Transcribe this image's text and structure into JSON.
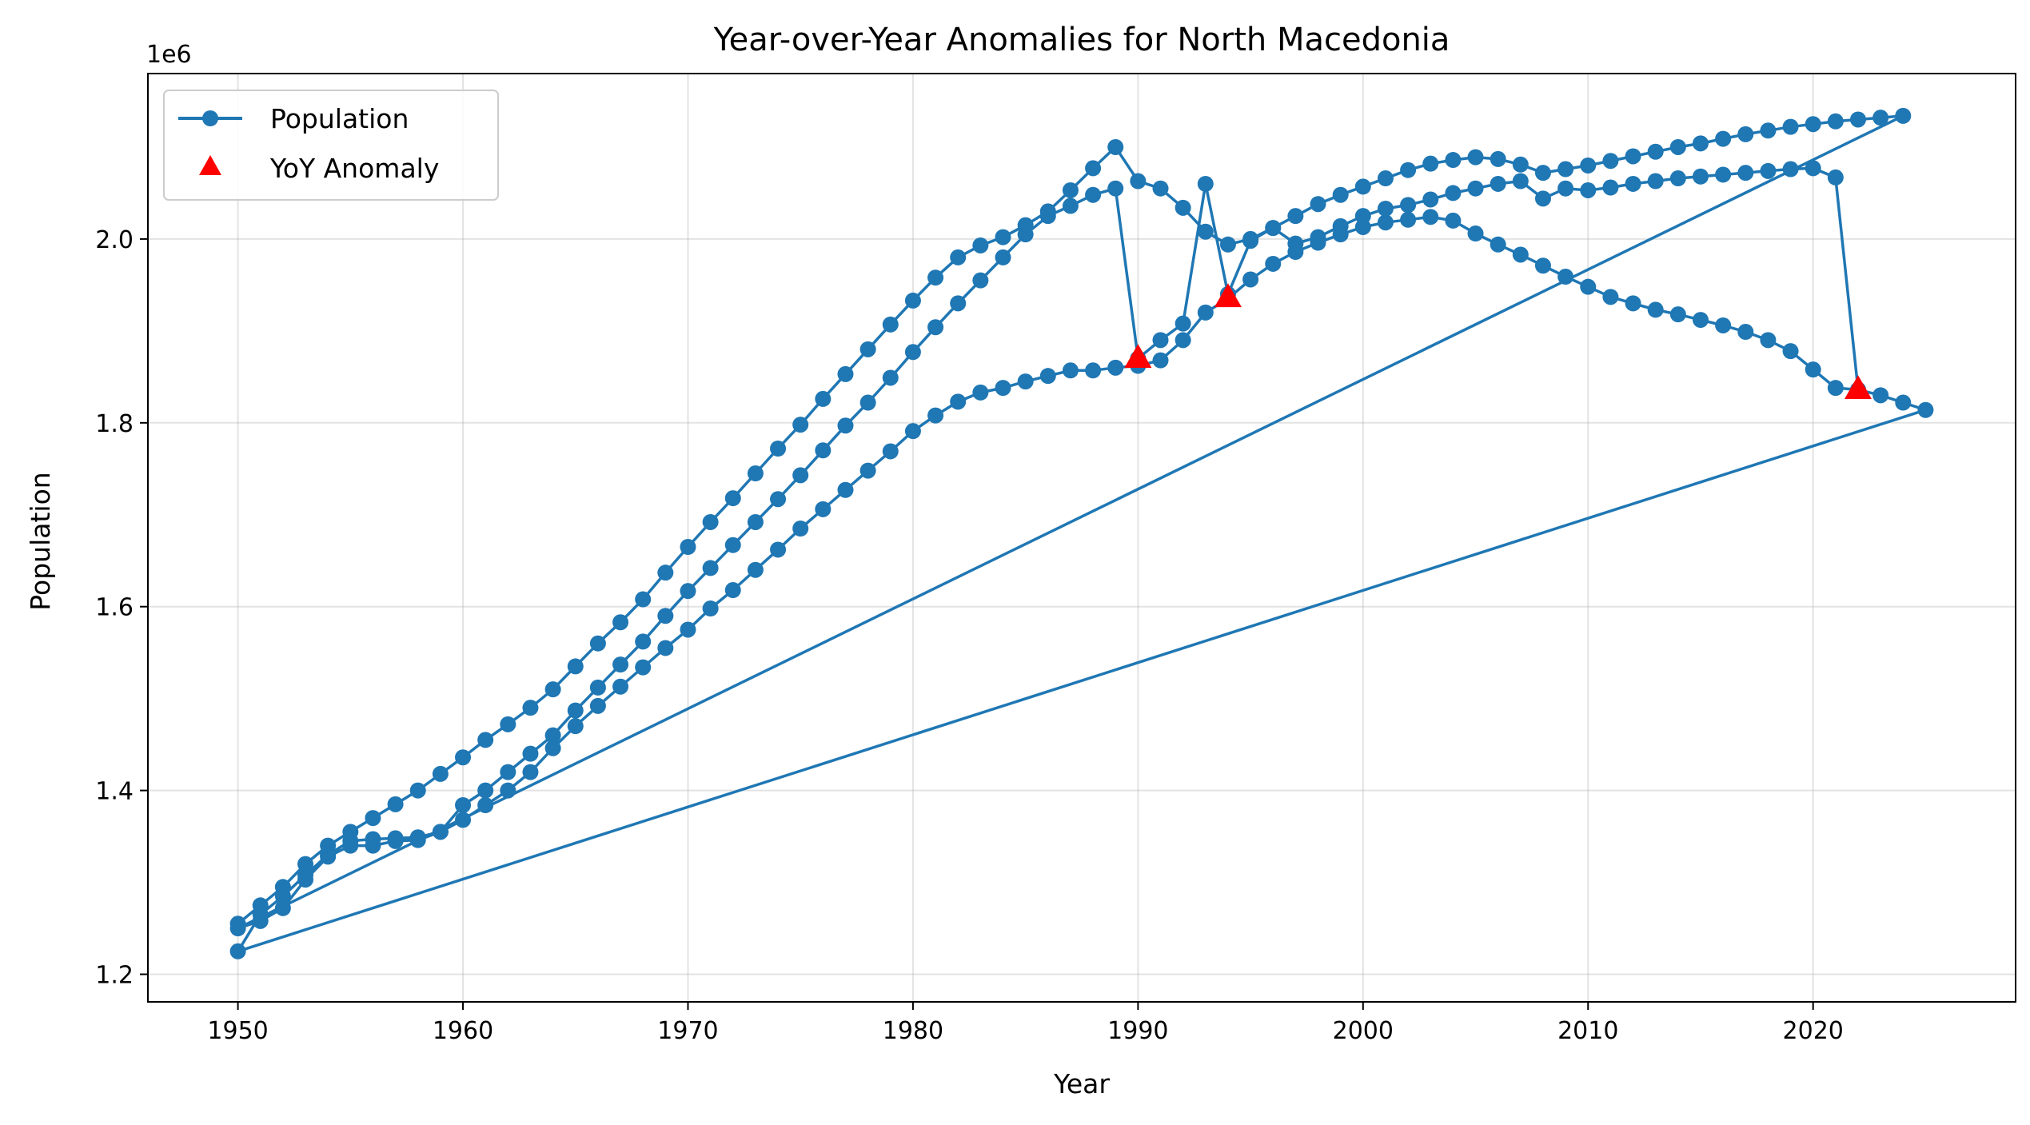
{
  "chart_data": {
    "type": "line",
    "title": "Year-over-Year Anomalies for North Macedonia",
    "xlabel": "Year",
    "ylabel": "Population",
    "y_offset_label": "1e6",
    "xlim": [
      1946,
      2029
    ],
    "ylim": [
      1170000,
      2180000
    ],
    "x_ticks": [
      1950,
      1960,
      1970,
      1980,
      1990,
      2000,
      2010,
      2020
    ],
    "y_ticks": [
      1200000,
      1400000,
      1600000,
      1800000,
      2000000
    ],
    "y_tick_labels": [
      "1.2",
      "1.4",
      "1.6",
      "1.8",
      "2.0"
    ],
    "grid": true,
    "legend_position": "top-left",
    "series": [
      {
        "name": "Population",
        "color": "#1f77b4",
        "marker": "circle",
        "x": [
          1950,
          1951,
          1952,
          1953,
          1954,
          1955,
          1956,
          1957,
          1958,
          1959,
          1960,
          1961,
          1962,
          1963,
          1964,
          1965,
          1966,
          1967,
          1968,
          1969,
          1970,
          1971,
          1972,
          1973,
          1974,
          1975,
          1976,
          1977,
          1978,
          1979,
          1980,
          1981,
          1982,
          1983,
          1984,
          1985,
          1986,
          1987,
          1988,
          1989,
          1990,
          1991,
          1992,
          1993,
          1994,
          1995,
          1996,
          1997,
          1998,
          1999,
          2000,
          2001,
          2002,
          2003,
          2004,
          2005,
          2006,
          2007,
          2008,
          2009,
          2010,
          2011,
          2012,
          2013,
          2014,
          2015,
          2016,
          2017,
          2018,
          2019,
          2020,
          2021,
          2022,
          2023,
          2024,
          1950,
          1951,
          1952,
          1953,
          1954,
          1955,
          1956,
          1957,
          1958,
          1959,
          1960,
          1961,
          1962,
          1963,
          1964,
          1965,
          1966,
          1967,
          1968,
          1969,
          1970,
          1971,
          1972,
          1973,
          1974,
          1975,
          1976,
          1977,
          1978,
          1979,
          1980,
          1981,
          1982,
          1983,
          1984,
          1985,
          1986,
          1987,
          1988,
          1989,
          1990,
          1991,
          1992,
          1993,
          1994,
          1995,
          1996,
          1997,
          1998,
          1999,
          2000,
          2001,
          2002,
          2003,
          2004,
          2005,
          2006,
          2007,
          2008,
          2009,
          2010,
          2011,
          2012,
          2013,
          2014,
          2015,
          2016,
          2017,
          2018,
          2019,
          2020,
          2021,
          2022,
          2023,
          2024,
          2025,
          1950,
          1951,
          1952,
          1953,
          1954,
          1955,
          1956,
          1957,
          1958,
          1959,
          1960,
          1961,
          1962,
          1963,
          1964,
          1965,
          1966,
          1967,
          1968,
          1969,
          1970,
          1971,
          1972,
          1973,
          1974,
          1975,
          1976,
          1977,
          1978,
          1979,
          1980,
          1981,
          1982,
          1983,
          1984,
          1985,
          1986,
          1987,
          1988,
          1989,
          1990,
          1991,
          1992,
          1993,
          1994,
          1995,
          1996,
          1997,
          1998,
          1999,
          2000,
          2001,
          2002,
          2003,
          2004,
          2005,
          2006,
          2007,
          2008,
          2009,
          2010,
          2011,
          2012,
          2013,
          2014,
          2015,
          2016,
          2017,
          2018,
          2019,
          2020,
          2021,
          2022
        ],
        "y": [
          1255000,
          1275000,
          1295000,
          1320000,
          1340000,
          1355000,
          1370000,
          1385000,
          1400000,
          1418000,
          1436000,
          1455000,
          1472000,
          1490000,
          1510000,
          1535000,
          1560000,
          1583000,
          1608000,
          1637000,
          1665000,
          1692000,
          1718000,
          1745000,
          1772000,
          1798000,
          1826000,
          1853000,
          1880000,
          1907000,
          1933000,
          1958000,
          1980000,
          1993000,
          2002000,
          2015000,
          2030000,
          2053000,
          2077000,
          2100000,
          2063000,
          2055000,
          2034000,
          2008000,
          1994000,
          2000000,
          2012000,
          2025000,
          2038000,
          2048000,
          2057000,
          2066000,
          2075000,
          2082000,
          2086000,
          2089000,
          2087000,
          2081000,
          2072000,
          2076000,
          2080000,
          2085000,
          2090000,
          2095000,
          2100000,
          2104000,
          2109000,
          2114000,
          2118000,
          2122000,
          2125000,
          2128000,
          2130000,
          2132000,
          2134000,
          1250000,
          1258000,
          1272000,
          1303000,
          1328000,
          1340000,
          1340000,
          1345000,
          1346000,
          1355000,
          1368000,
          1384000,
          1400000,
          1420000,
          1446000,
          1470000,
          1492000,
          1513000,
          1534000,
          1555000,
          1575000,
          1598000,
          1618000,
          1640000,
          1662000,
          1685000,
          1706000,
          1727000,
          1748000,
          1769000,
          1791000,
          1808000,
          1823000,
          1833000,
          1838000,
          1845000,
          1851000,
          1857000,
          1857000,
          1860000,
          1862000,
          1868000,
          1890000,
          1920000,
          1935000,
          1956000,
          1973000,
          1986000,
          1996000,
          2005000,
          2013000,
          2018000,
          2021000,
          2024000,
          2020000,
          2006000,
          1994000,
          1983000,
          1971000,
          1959000,
          1948000,
          1937000,
          1930000,
          1923000,
          1918000,
          1912000,
          1906000,
          1899000,
          1890000,
          1878000,
          1858000,
          1838000,
          1836000,
          1830000,
          1822000,
          1814000,
          1225000,
          1265000,
          1285000,
          1308000,
          1330000,
          1345000,
          1347000,
          1348000,
          1349000,
          1355000,
          1384000,
          1400000,
          1420000,
          1440000,
          1460000,
          1487000,
          1512000,
          1537000,
          1562000,
          1590000,
          1617000,
          1642000,
          1667000,
          1692000,
          1717000,
          1743000,
          1770000,
          1797000,
          1822000,
          1849000,
          1877000,
          1904000,
          1930000,
          1955000,
          1980000,
          2005000,
          2025000,
          2036000,
          2048000,
          2055000,
          1870000,
          1890000,
          1908000,
          2060000,
          1940000,
          1998000,
          2012000,
          1995000,
          2002000,
          2014000,
          2025000,
          2033000,
          2037000,
          2043000,
          2050000,
          2055000,
          2060000,
          2063000,
          2044000,
          2055000,
          2053000,
          2056000,
          2060000,
          2063000,
          2066000,
          2068000,
          2070000,
          2072000,
          2074000,
          2076000,
          2077000,
          2067000,
          1836000
        ]
      },
      {
        "name": "YoY Anomaly",
        "color": "#ff0000",
        "marker": "triangle",
        "x": [
          1990,
          1994,
          2022
        ],
        "y": [
          1871000,
          1937000,
          1837000
        ]
      }
    ]
  }
}
